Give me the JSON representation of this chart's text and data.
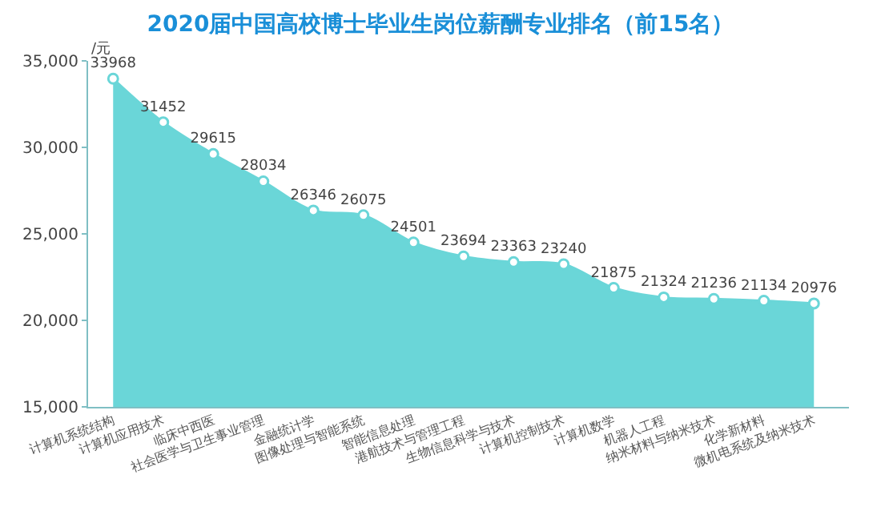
{
  "chart_data": {
    "type": "area",
    "title": "2020届中国高校博士毕业生岗位薪酬专业排名（前15名）",
    "ylabel": "/元",
    "categories": [
      "计算机系统结构",
      "计算机应用技术",
      "临床中西医",
      "社会医学与卫生事业管理",
      "金融统计学",
      "图像处理与智能系统",
      "智能信息处理",
      "港航技术与管理工程",
      "生物信息科学与技术",
      "计算机控制技术",
      "计算机数学",
      "机器人工程",
      "纳米材料与纳米技术",
      "化学新材料",
      "微机电系统及纳米技术"
    ],
    "values": [
      33968,
      31452,
      29615,
      28034,
      26346,
      26075,
      24501,
      23694,
      23363,
      23240,
      21875,
      21324,
      21236,
      21134,
      20976
    ],
    "color": "#6ad6d8",
    "ylim": [
      15000,
      35000
    ],
    "yticks": [
      {
        "value": 15000,
        "label": "15,000"
      },
      {
        "value": 20000,
        "label": "20,000"
      },
      {
        "value": 25000,
        "label": "25,000"
      },
      {
        "value": 30000,
        "label": "30,000"
      },
      {
        "value": 35000,
        "label": "35,000"
      }
    ],
    "data_labels": true,
    "marker": "circle"
  }
}
